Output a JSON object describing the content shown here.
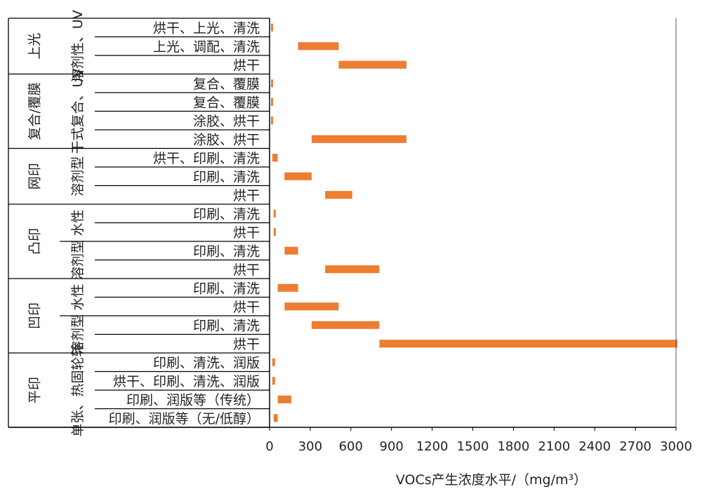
{
  "chart_data": {
    "type": "bar",
    "orientation": "horizontal",
    "bar_kind": "range",
    "color": "#ED7D31",
    "xlabel": "VOCs产生浓度水平/（mg/m³）",
    "xlim": [
      0,
      3000
    ],
    "xticks": [
      0,
      300,
      600,
      900,
      1200,
      1500,
      1800,
      2100,
      2400,
      2700,
      3000
    ],
    "grid": false,
    "rows": [
      {
        "label": "烘干、上光、清洗",
        "range": [
          0,
          15
        ]
      },
      {
        "label": "上光、调配、清洗",
        "range": [
          200,
          500
        ]
      },
      {
        "label": "烘干",
        "range": [
          500,
          1000
        ]
      },
      {
        "label": "复合、覆膜",
        "range": [
          0,
          15
        ]
      },
      {
        "label": "复合、覆膜",
        "range": [
          0,
          15
        ]
      },
      {
        "label": "涂胶、烘干",
        "range": [
          0,
          15
        ]
      },
      {
        "label": "涂胶、烘干",
        "range": [
          300,
          1000
        ]
      },
      {
        "label": "烘干、印刷、清洗",
        "range": [
          10,
          50
        ]
      },
      {
        "label": "印刷、清洗",
        "range": [
          100,
          300
        ]
      },
      {
        "label": "烘干",
        "range": [
          400,
          600
        ]
      },
      {
        "label": "印刷、清洗",
        "range": [
          20,
          30
        ]
      },
      {
        "label": "烘干",
        "range": [
          20,
          30
        ]
      },
      {
        "label": "印刷、清洗",
        "range": [
          100,
          200
        ]
      },
      {
        "label": "烘干",
        "range": [
          400,
          800
        ]
      },
      {
        "label": "印刷、清洗",
        "range": [
          50,
          200
        ]
      },
      {
        "label": "烘干",
        "range": [
          100,
          500
        ]
      },
      {
        "label": "印刷、清洗",
        "range": [
          300,
          800
        ]
      },
      {
        "label": "烘干",
        "range": [
          800,
          3000
        ]
      },
      {
        "label": "印刷、清洗、润版",
        "range": [
          10,
          30
        ]
      },
      {
        "label": "烘干、印刷、清洗、润版",
        "range": [
          10,
          30
        ]
      },
      {
        "label": "印刷、润版等（传统）",
        "range": [
          50,
          150
        ]
      },
      {
        "label": "印刷、润版等（无/低醇）",
        "range": [
          20,
          50
        ]
      }
    ],
    "groups": [
      {
        "label": "上光",
        "start": 0,
        "end": 3
      },
      {
        "label": "复合/覆膜",
        "start": 3,
        "end": 7
      },
      {
        "label": "网印",
        "start": 7,
        "end": 10
      },
      {
        "label": "凸印",
        "start": 10,
        "end": 14
      },
      {
        "label": "凹印",
        "start": 14,
        "end": 18
      },
      {
        "label": "平印",
        "start": 18,
        "end": 22
      }
    ],
    "subgroups": [
      {
        "label": "溶剂性、UV",
        "start": 0,
        "end": 3
      },
      {
        "label": "干式复合、UV",
        "start": 3,
        "end": 7
      },
      {
        "label": "溶剂型",
        "start": 7,
        "end": 10
      },
      {
        "label": "水性",
        "start": 10,
        "end": 12
      },
      {
        "label": "溶剂型",
        "start": 12,
        "end": 14
      },
      {
        "label": "水性",
        "start": 14,
        "end": 16
      },
      {
        "label": "溶剂型",
        "start": 16,
        "end": 18
      },
      {
        "label": "单张、热固轮转",
        "start": 18,
        "end": 22
      }
    ]
  }
}
